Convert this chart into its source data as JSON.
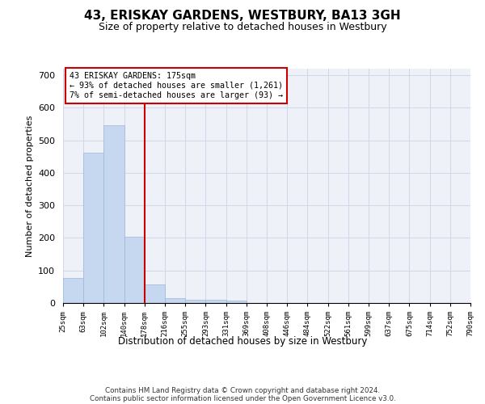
{
  "title": "43, ERISKAY GARDENS, WESTBURY, BA13 3GH",
  "subtitle": "Size of property relative to detached houses in Westbury",
  "xlabel": "Distribution of detached houses by size in Westbury",
  "ylabel": "Number of detached properties",
  "bar_heights": [
    78,
    462,
    547,
    204,
    57,
    15,
    10,
    10,
    8,
    0,
    0,
    0,
    0,
    0,
    0,
    0,
    0,
    0,
    0,
    0
  ],
  "bin_labels": [
    "25sqm",
    "63sqm",
    "102sqm",
    "140sqm",
    "178sqm",
    "216sqm",
    "255sqm",
    "293sqm",
    "331sqm",
    "369sqm",
    "408sqm",
    "446sqm",
    "484sqm",
    "522sqm",
    "561sqm",
    "599sqm",
    "637sqm",
    "675sqm",
    "714sqm",
    "752sqm",
    "790sqm"
  ],
  "bar_color": "#c5d8f0",
  "bar_edge_color": "#9ab8d8",
  "grid_color": "#d0d8e8",
  "bg_color": "#eef2f8",
  "vline_x_idx": 4,
  "vline_color": "#cc0000",
  "annotation_line1": "43 ERISKAY GARDENS: 175sqm",
  "annotation_line2": "← 93% of detached houses are smaller (1,261)",
  "annotation_line3": "7% of semi-detached houses are larger (93) →",
  "annotation_box_edgecolor": "#cc0000",
  "ylim": [
    0,
    720
  ],
  "yticks": [
    0,
    100,
    200,
    300,
    400,
    500,
    600,
    700
  ],
  "footer_line1": "Contains HM Land Registry data © Crown copyright and database right 2024.",
  "footer_line2": "Contains public sector information licensed under the Open Government Licence v3.0."
}
